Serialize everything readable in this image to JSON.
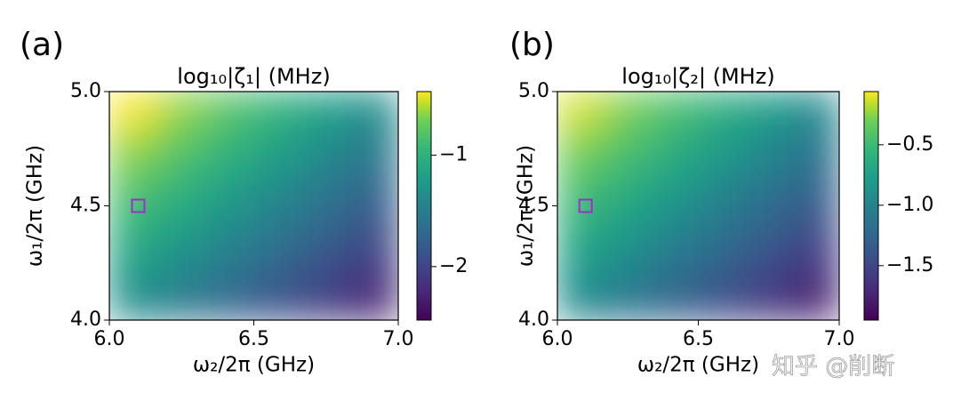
{
  "chart_data": [
    {
      "type": "heatmap",
      "panel_label": "(a)",
      "title": "log₁₀|ζ₁| (MHz)",
      "x_label": "ω₂/2π (GHz)",
      "y_label": "ω₁/2π (GHz)",
      "xlim": [
        6.0,
        7.0
      ],
      "xticks": [
        {
          "value": 6.0,
          "label": "6.0"
        },
        {
          "value": 6.5,
          "label": "6.5"
        },
        {
          "value": 7.0,
          "label": "7.0"
        }
      ],
      "ylim": [
        4.0,
        5.0
      ],
      "yticks": [
        {
          "value": 4.0,
          "label": "4.0"
        },
        {
          "value": 4.5,
          "label": "4.5"
        },
        {
          "value": 5.0,
          "label": "5.0"
        }
      ],
      "colormap": "viridis",
      "clim": [
        -2.48,
        -0.43
      ],
      "cticks": [
        {
          "value": -1,
          "label": "−1"
        },
        {
          "value": -2,
          "label": "−2"
        }
      ],
      "z": [
        [
          -0.43,
          -0.62,
          -0.8,
          -0.98,
          -1.17,
          -1.35
        ],
        [
          -0.62,
          -0.8,
          -0.98,
          -1.17,
          -1.35,
          -1.53
        ],
        [
          -0.8,
          -0.98,
          -1.17,
          -1.35,
          -1.53,
          -1.72
        ],
        [
          -0.98,
          -1.17,
          -1.35,
          -1.53,
          -1.72,
          -1.9
        ],
        [
          -1.17,
          -1.35,
          -1.53,
          -1.72,
          -1.9,
          -2.08
        ],
        [
          -1.35,
          -1.53,
          -1.72,
          -1.9,
          -2.08,
          -2.27
        ]
      ],
      "marker": {
        "x": 6.1,
        "y": 4.5,
        "color": "#9b30c8"
      }
    },
    {
      "type": "heatmap",
      "panel_label": "(b)",
      "title": "log₁₀|ζ₂| (MHz)",
      "x_label": "ω₂/2π (GHz)",
      "y_label": "ω₁/2π (GHz)",
      "xlim": [
        6.0,
        7.0
      ],
      "xticks": [
        {
          "value": 6.0,
          "label": "6.0"
        },
        {
          "value": 6.5,
          "label": "6.5"
        },
        {
          "value": 7.0,
          "label": "7.0"
        }
      ],
      "ylim": [
        4.0,
        5.0
      ],
      "yticks": [
        {
          "value": 4.0,
          "label": "4.0"
        },
        {
          "value": 4.5,
          "label": "4.5"
        },
        {
          "value": 5.0,
          "label": "5.0"
        }
      ],
      "colormap": "viridis",
      "clim": [
        -1.95,
        -0.06
      ],
      "cticks": [
        {
          "value": -0.5,
          "label": "−0.5"
        },
        {
          "value": -1.0,
          "label": "−1.0"
        },
        {
          "value": -1.5,
          "label": "−1.5"
        }
      ],
      "z": [
        [
          -0.12,
          -0.28,
          -0.45,
          -0.62,
          -0.78,
          -0.95
        ],
        [
          -0.28,
          -0.45,
          -0.62,
          -0.78,
          -0.95,
          -1.12
        ],
        [
          -0.45,
          -0.62,
          -0.78,
          -0.95,
          -1.12,
          -1.28
        ],
        [
          -0.62,
          -0.78,
          -0.95,
          -1.12,
          -1.28,
          -1.45
        ],
        [
          -0.78,
          -0.95,
          -1.12,
          -1.28,
          -1.45,
          -1.62
        ],
        [
          -0.95,
          -1.12,
          -1.28,
          -1.45,
          -1.62,
          -1.78
        ]
      ],
      "marker": {
        "x": 6.1,
        "y": 4.5,
        "color": "#9b30c8"
      }
    }
  ],
  "watermark": "知乎 @削断"
}
